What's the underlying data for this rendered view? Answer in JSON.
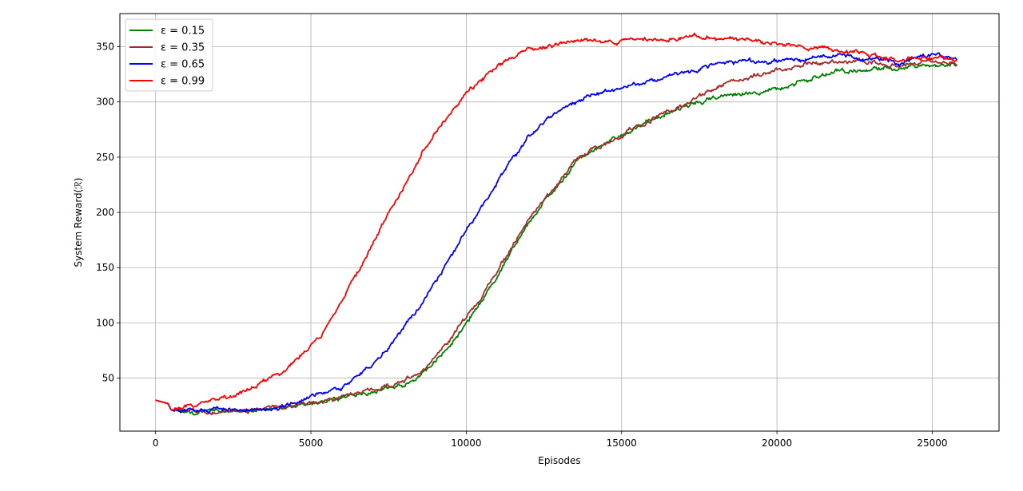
{
  "chart_data": {
    "type": "line",
    "title": "",
    "xlabel": "Episodes",
    "ylabel": "System Reward(ℛ)",
    "xlim": [
      -1150,
      27150
    ],
    "ylim": [
      2,
      380
    ],
    "xticks": [
      0,
      5000,
      10000,
      15000,
      20000,
      25000
    ],
    "yticks": [
      50,
      100,
      150,
      200,
      250,
      300,
      350
    ],
    "grid": true,
    "legend_position": "top-left",
    "series": [
      {
        "name": "ε = 0.15",
        "color": "#008000",
        "x": [
          0,
          400,
          500,
          1000,
          2000,
          3000,
          4000,
          5000,
          6000,
          7000,
          8000,
          8500,
          9000,
          9500,
          10000,
          10500,
          11000,
          11500,
          12000,
          12500,
          13000,
          13500,
          14000,
          15000,
          16000,
          17000,
          18000,
          19000,
          20000,
          21000,
          22000,
          23000,
          24000,
          25000,
          25800
        ],
        "y": [
          30,
          27,
          21,
          20,
          20,
          21,
          23,
          27,
          33,
          38,
          45,
          52,
          64,
          80,
          100,
          120,
          142,
          168,
          190,
          210,
          225,
          245,
          255,
          270,
          285,
          296,
          304,
          308,
          312,
          320,
          328,
          330,
          332,
          333,
          333
        ]
      },
      {
        "name": "ε = 0.35",
        "color": "#a52a2a",
        "x": [
          0,
          400,
          500,
          1000,
          2000,
          3000,
          4000,
          5000,
          6000,
          7000,
          8000,
          8500,
          9000,
          9500,
          10000,
          10500,
          11000,
          11500,
          12000,
          12500,
          13000,
          13500,
          14000,
          15000,
          16000,
          17000,
          18000,
          19000,
          20000,
          21000,
          22000,
          23000,
          24000,
          25000,
          25800
        ],
        "y": [
          30,
          27,
          21,
          20,
          20,
          21,
          23,
          27,
          33,
          39,
          47,
          55,
          68,
          85,
          105,
          125,
          148,
          170,
          192,
          212,
          228,
          246,
          256,
          270,
          286,
          298,
          312,
          322,
          328,
          334,
          337,
          336,
          334,
          337,
          335
        ]
      },
      {
        "name": "ε = 0.65",
        "color": "#0000ff",
        "x": [
          0,
          400,
          500,
          1000,
          2000,
          3000,
          4000,
          5000,
          5500,
          6000,
          6500,
          7000,
          7500,
          8000,
          8500,
          9000,
          9500,
          10000,
          10500,
          11000,
          11500,
          12000,
          12500,
          13000,
          13500,
          14000,
          15000,
          16000,
          17000,
          18000,
          19000,
          20000,
          21000,
          22000,
          23000,
          24000,
          25000,
          25800
        ],
        "y": [
          30,
          27,
          21,
          20,
          20,
          21,
          25,
          32,
          37,
          43,
          52,
          63,
          77,
          95,
          115,
          135,
          160,
          185,
          205,
          228,
          250,
          268,
          280,
          293,
          300,
          305,
          312,
          320,
          326,
          333,
          338,
          336,
          338,
          342,
          340,
          336,
          343,
          340
        ]
      },
      {
        "name": "ε = 0.99",
        "color": "#ff0000",
        "x": [
          0,
          400,
          500,
          1000,
          2000,
          2500,
          3000,
          3500,
          4000,
          4500,
          5000,
          5500,
          6000,
          6500,
          7000,
          7500,
          8000,
          8500,
          9000,
          9500,
          10000,
          10500,
          11000,
          11500,
          12000,
          12500,
          13000,
          13500,
          14000,
          15000,
          16000,
          17000,
          18000,
          19000,
          20000,
          21000,
          22000,
          23000,
          24000,
          25000,
          25800
        ],
        "y": [
          30,
          27,
          21,
          24,
          30,
          34,
          40,
          47,
          55,
          65,
          78,
          95,
          118,
          145,
          172,
          200,
          225,
          250,
          272,
          290,
          308,
          320,
          332,
          340,
          347,
          350,
          354,
          355,
          356,
          355,
          356,
          358,
          358,
          356,
          352,
          350,
          347,
          343,
          338,
          340,
          338
        ]
      }
    ]
  }
}
